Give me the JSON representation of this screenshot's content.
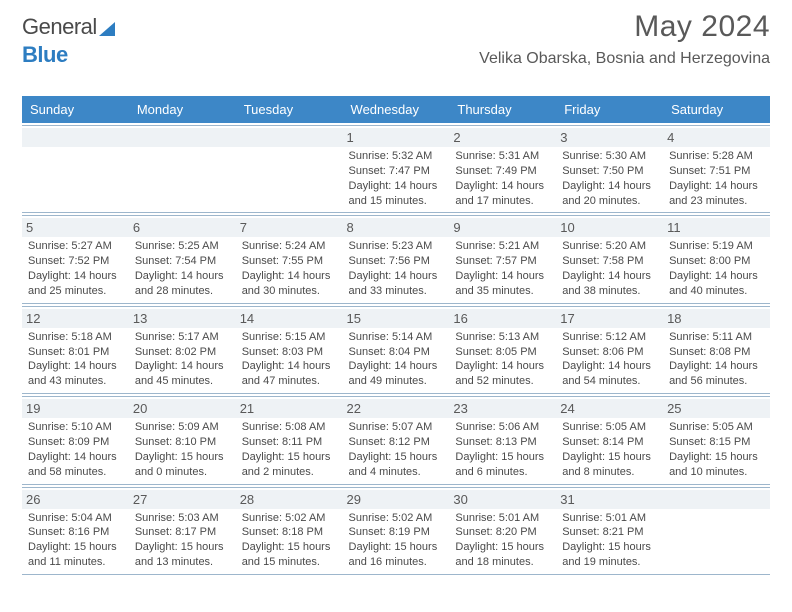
{
  "brand": {
    "part1": "General",
    "part2": "Blue"
  },
  "title": {
    "month": "May 2024",
    "location": "Velika Obarska, Bosnia and Herzegovina"
  },
  "colors": {
    "header_bg": "#3d87c7",
    "header_text": "#ffffff",
    "daynum_bg": "#eef2f5",
    "week_border": "#9db6cc",
    "text": "#4a4a4a",
    "title_color": "#595959",
    "logo_blue": "#2d7dc1"
  },
  "typography": {
    "title_fontsize": 30,
    "location_fontsize": 16,
    "header_fontsize": 13,
    "daynum_fontsize": 13,
    "body_fontsize": 11
  },
  "dayNames": [
    "Sunday",
    "Monday",
    "Tuesday",
    "Wednesday",
    "Thursday",
    "Friday",
    "Saturday"
  ],
  "weeks": [
    [
      {
        "n": "",
        "sunrise": "",
        "sunset": "",
        "daylight": ""
      },
      {
        "n": "",
        "sunrise": "",
        "sunset": "",
        "daylight": ""
      },
      {
        "n": "",
        "sunrise": "",
        "sunset": "",
        "daylight": ""
      },
      {
        "n": "1",
        "sunrise": "Sunrise: 5:32 AM",
        "sunset": "Sunset: 7:47 PM",
        "daylight": "Daylight: 14 hours and 15 minutes."
      },
      {
        "n": "2",
        "sunrise": "Sunrise: 5:31 AM",
        "sunset": "Sunset: 7:49 PM",
        "daylight": "Daylight: 14 hours and 17 minutes."
      },
      {
        "n": "3",
        "sunrise": "Sunrise: 5:30 AM",
        "sunset": "Sunset: 7:50 PM",
        "daylight": "Daylight: 14 hours and 20 minutes."
      },
      {
        "n": "4",
        "sunrise": "Sunrise: 5:28 AM",
        "sunset": "Sunset: 7:51 PM",
        "daylight": "Daylight: 14 hours and 23 minutes."
      }
    ],
    [
      {
        "n": "5",
        "sunrise": "Sunrise: 5:27 AM",
        "sunset": "Sunset: 7:52 PM",
        "daylight": "Daylight: 14 hours and 25 minutes."
      },
      {
        "n": "6",
        "sunrise": "Sunrise: 5:25 AM",
        "sunset": "Sunset: 7:54 PM",
        "daylight": "Daylight: 14 hours and 28 minutes."
      },
      {
        "n": "7",
        "sunrise": "Sunrise: 5:24 AM",
        "sunset": "Sunset: 7:55 PM",
        "daylight": "Daylight: 14 hours and 30 minutes."
      },
      {
        "n": "8",
        "sunrise": "Sunrise: 5:23 AM",
        "sunset": "Sunset: 7:56 PM",
        "daylight": "Daylight: 14 hours and 33 minutes."
      },
      {
        "n": "9",
        "sunrise": "Sunrise: 5:21 AM",
        "sunset": "Sunset: 7:57 PM",
        "daylight": "Daylight: 14 hours and 35 minutes."
      },
      {
        "n": "10",
        "sunrise": "Sunrise: 5:20 AM",
        "sunset": "Sunset: 7:58 PM",
        "daylight": "Daylight: 14 hours and 38 minutes."
      },
      {
        "n": "11",
        "sunrise": "Sunrise: 5:19 AM",
        "sunset": "Sunset: 8:00 PM",
        "daylight": "Daylight: 14 hours and 40 minutes."
      }
    ],
    [
      {
        "n": "12",
        "sunrise": "Sunrise: 5:18 AM",
        "sunset": "Sunset: 8:01 PM",
        "daylight": "Daylight: 14 hours and 43 minutes."
      },
      {
        "n": "13",
        "sunrise": "Sunrise: 5:17 AM",
        "sunset": "Sunset: 8:02 PM",
        "daylight": "Daylight: 14 hours and 45 minutes."
      },
      {
        "n": "14",
        "sunrise": "Sunrise: 5:15 AM",
        "sunset": "Sunset: 8:03 PM",
        "daylight": "Daylight: 14 hours and 47 minutes."
      },
      {
        "n": "15",
        "sunrise": "Sunrise: 5:14 AM",
        "sunset": "Sunset: 8:04 PM",
        "daylight": "Daylight: 14 hours and 49 minutes."
      },
      {
        "n": "16",
        "sunrise": "Sunrise: 5:13 AM",
        "sunset": "Sunset: 8:05 PM",
        "daylight": "Daylight: 14 hours and 52 minutes."
      },
      {
        "n": "17",
        "sunrise": "Sunrise: 5:12 AM",
        "sunset": "Sunset: 8:06 PM",
        "daylight": "Daylight: 14 hours and 54 minutes."
      },
      {
        "n": "18",
        "sunrise": "Sunrise: 5:11 AM",
        "sunset": "Sunset: 8:08 PM",
        "daylight": "Daylight: 14 hours and 56 minutes."
      }
    ],
    [
      {
        "n": "19",
        "sunrise": "Sunrise: 5:10 AM",
        "sunset": "Sunset: 8:09 PM",
        "daylight": "Daylight: 14 hours and 58 minutes."
      },
      {
        "n": "20",
        "sunrise": "Sunrise: 5:09 AM",
        "sunset": "Sunset: 8:10 PM",
        "daylight": "Daylight: 15 hours and 0 minutes."
      },
      {
        "n": "21",
        "sunrise": "Sunrise: 5:08 AM",
        "sunset": "Sunset: 8:11 PM",
        "daylight": "Daylight: 15 hours and 2 minutes."
      },
      {
        "n": "22",
        "sunrise": "Sunrise: 5:07 AM",
        "sunset": "Sunset: 8:12 PM",
        "daylight": "Daylight: 15 hours and 4 minutes."
      },
      {
        "n": "23",
        "sunrise": "Sunrise: 5:06 AM",
        "sunset": "Sunset: 8:13 PM",
        "daylight": "Daylight: 15 hours and 6 minutes."
      },
      {
        "n": "24",
        "sunrise": "Sunrise: 5:05 AM",
        "sunset": "Sunset: 8:14 PM",
        "daylight": "Daylight: 15 hours and 8 minutes."
      },
      {
        "n": "25",
        "sunrise": "Sunrise: 5:05 AM",
        "sunset": "Sunset: 8:15 PM",
        "daylight": "Daylight: 15 hours and 10 minutes."
      }
    ],
    [
      {
        "n": "26",
        "sunrise": "Sunrise: 5:04 AM",
        "sunset": "Sunset: 8:16 PM",
        "daylight": "Daylight: 15 hours and 11 minutes."
      },
      {
        "n": "27",
        "sunrise": "Sunrise: 5:03 AM",
        "sunset": "Sunset: 8:17 PM",
        "daylight": "Daylight: 15 hours and 13 minutes."
      },
      {
        "n": "28",
        "sunrise": "Sunrise: 5:02 AM",
        "sunset": "Sunset: 8:18 PM",
        "daylight": "Daylight: 15 hours and 15 minutes."
      },
      {
        "n": "29",
        "sunrise": "Sunrise: 5:02 AM",
        "sunset": "Sunset: 8:19 PM",
        "daylight": "Daylight: 15 hours and 16 minutes."
      },
      {
        "n": "30",
        "sunrise": "Sunrise: 5:01 AM",
        "sunset": "Sunset: 8:20 PM",
        "daylight": "Daylight: 15 hours and 18 minutes."
      },
      {
        "n": "31",
        "sunrise": "Sunrise: 5:01 AM",
        "sunset": "Sunset: 8:21 PM",
        "daylight": "Daylight: 15 hours and 19 minutes."
      },
      {
        "n": "",
        "sunrise": "",
        "sunset": "",
        "daylight": ""
      }
    ]
  ]
}
